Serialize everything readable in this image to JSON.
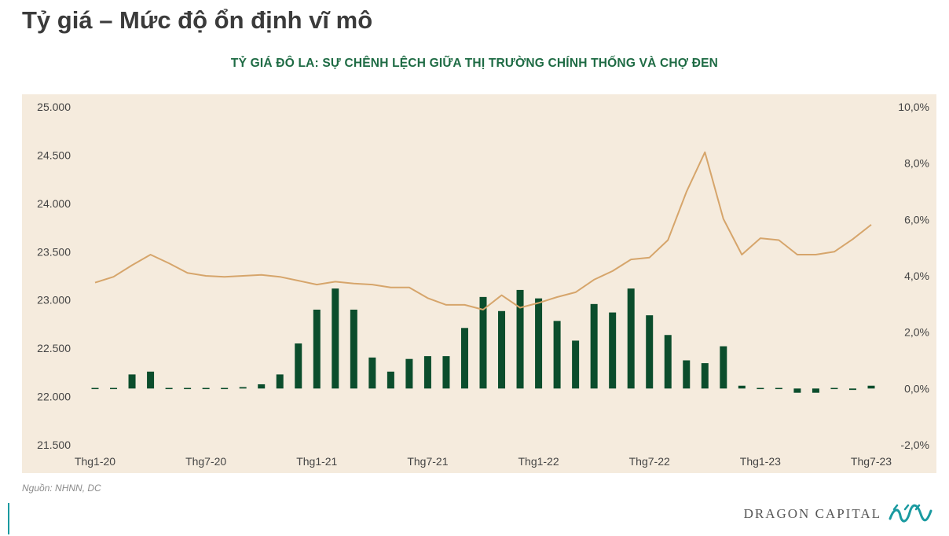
{
  "header": {
    "title": "Tỷ giá – Mức độ ổn định vĩ mô"
  },
  "chart_data": {
    "type": "bar+line",
    "title": "TỶ GIÁ ĐÔ LA: SỰ CHÊNH LỆCH GIỮA THỊ TRƯỜNG CHÍNH THỐNG VÀ CHỢ ĐEN",
    "x_tick_labels": [
      "Thg1-20",
      "Thg7-20",
      "Thg1-21",
      "Thg7-21",
      "Thg1-22",
      "Thg7-22",
      "Thg1-23",
      "Thg7-23"
    ],
    "left_axis": {
      "ylim": [
        21500,
        25000
      ],
      "ticks": [
        "21.500",
        "22.000",
        "22.500",
        "23.000",
        "23.500",
        "24.000",
        "24.500",
        "25.000"
      ]
    },
    "right_axis": {
      "ylim": [
        -2.0,
        10.0
      ],
      "ticks": [
        "-2,0%",
        "0,0%",
        "2,0%",
        "4,0%",
        "6,0%",
        "8,0%",
        "10,0%"
      ]
    },
    "grid": false,
    "legend": "none",
    "series": [
      {
        "type": "bar",
        "axis": "right",
        "color": "#0b4d2c",
        "values": [
          0.0,
          0.0,
          0.5,
          0.6,
          0.0,
          0.0,
          0.0,
          0.0,
          0.05,
          0.15,
          0.5,
          1.6,
          2.8,
          3.55,
          2.8,
          1.1,
          0.6,
          1.05,
          1.15,
          1.15,
          2.15,
          3.25,
          2.75,
          3.5,
          3.2,
          2.4,
          1.7,
          3.0,
          2.7,
          3.55,
          2.6,
          1.9,
          1.0,
          0.9,
          1.5,
          0.1,
          0.0,
          0.0,
          -0.15,
          -0.15,
          0.0,
          -0.05,
          0.1
        ]
      },
      {
        "type": "line",
        "axis": "left",
        "color": "#d6a56b",
        "values": [
          23180,
          23240,
          23360,
          23470,
          23380,
          23280,
          23250,
          23240,
          23250,
          23260,
          23240,
          23200,
          23160,
          23190,
          23170,
          23160,
          23130,
          23130,
          23020,
          22950,
          22950,
          22900,
          23050,
          22920,
          22970,
          23030,
          23080,
          23210,
          23300,
          23420,
          23440,
          23620,
          24120,
          24530,
          23840,
          23470,
          23640,
          23620,
          23470,
          23470,
          23500,
          23630,
          23780
        ]
      }
    ]
  },
  "footer": {
    "source": "Nguồn: NHNN, DC",
    "brand": "DRAGON CAPITAL"
  }
}
